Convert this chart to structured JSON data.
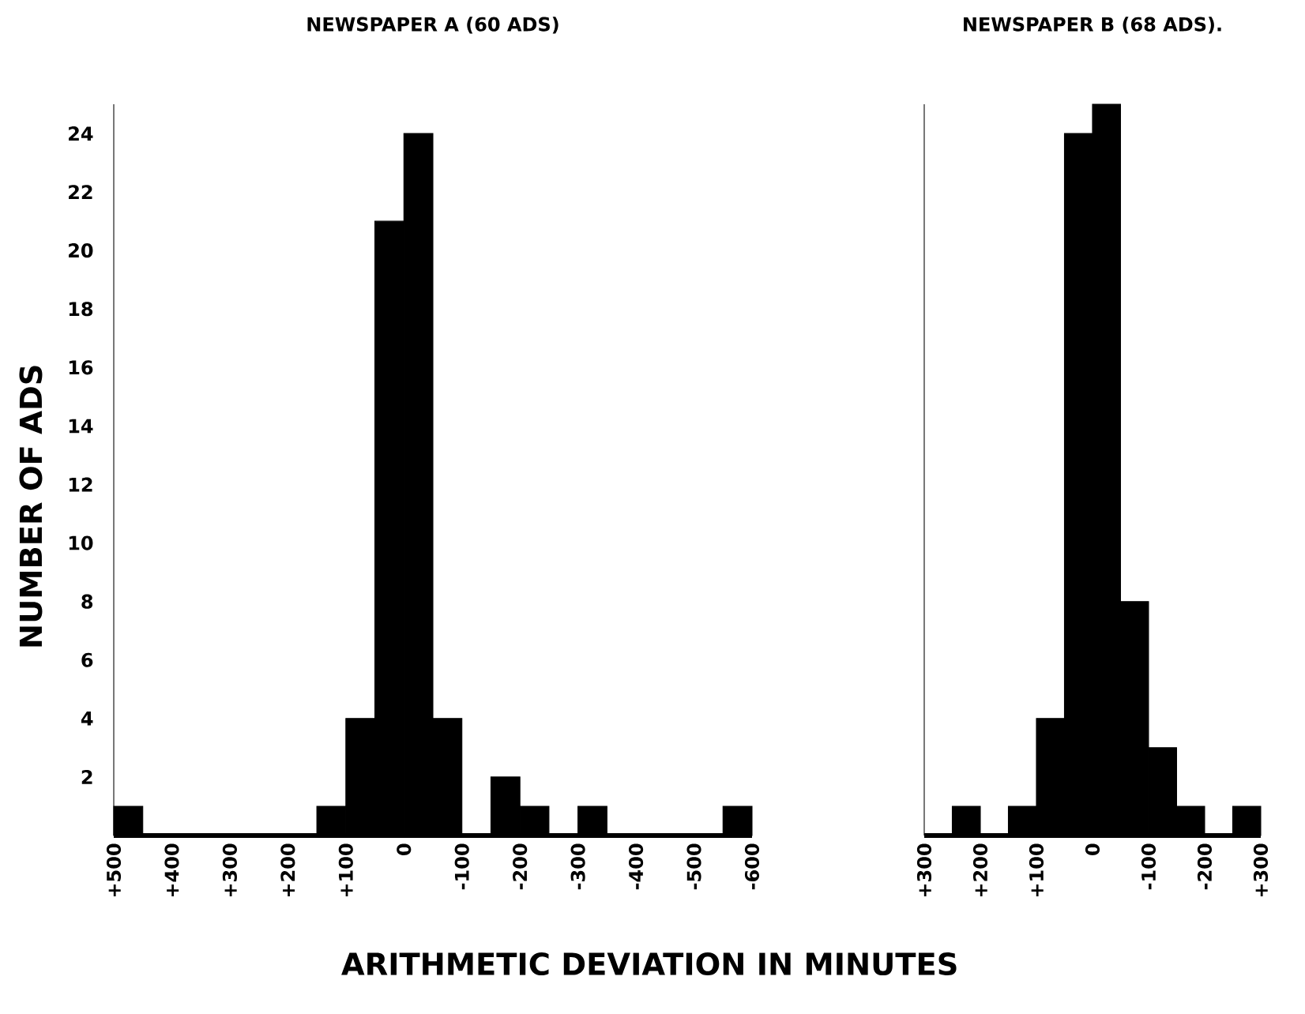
{
  "chart_data": [
    {
      "type": "histogram",
      "title": "NEWSPAPER A (60 ADS)",
      "xlabel": "ARITHMETIC DEVIATION IN MINUTES",
      "ylabel": "NUMBER OF ADS",
      "color": "#000000",
      "bins": [
        -600,
        -550,
        -500,
        -450,
        -400,
        -350,
        -300,
        -250,
        -200,
        -150,
        -100,
        -50,
        0,
        50,
        100,
        150,
        200,
        250,
        300,
        350,
        400,
        450,
        500
      ],
      "values": [
        1,
        0,
        0,
        0,
        0,
        1,
        0,
        1,
        2,
        0,
        4,
        24,
        21,
        4,
        1,
        0,
        0,
        0,
        0,
        0,
        0,
        1
      ],
      "xlim": [
        500,
        -600
      ],
      "xticks": [
        {
          "value": 500,
          "label": "+500"
        },
        {
          "value": 400,
          "label": "+400"
        },
        {
          "value": 300,
          "label": "+300"
        },
        {
          "value": 200,
          "label": "+200"
        },
        {
          "value": 100,
          "label": "+100"
        },
        {
          "value": 0,
          "label": "0"
        },
        {
          "value": -100,
          "label": "-100"
        },
        {
          "value": -200,
          "label": "-200"
        },
        {
          "value": -300,
          "label": "-300"
        },
        {
          "value": -400,
          "label": "-400"
        },
        {
          "value": -500,
          "label": "-500"
        },
        {
          "value": -600,
          "label": "-600"
        }
      ],
      "ylim": [
        0,
        25
      ],
      "yticks": [
        2,
        4,
        6,
        8,
        10,
        12,
        14,
        16,
        18,
        20,
        22,
        24
      ]
    },
    {
      "type": "histogram",
      "title": "NEWSPAPER B (68 ADS).",
      "color": "#000000",
      "bins": [
        -300,
        -250,
        -200,
        -150,
        -100,
        -50,
        0,
        50,
        100,
        150,
        200,
        250
      ],
      "values": [
        1,
        0,
        1,
        3,
        8,
        25,
        24,
        4,
        1,
        0,
        1
      ],
      "xlim": [
        300,
        -300
      ],
      "xticks": [
        {
          "value": 300,
          "label": "+300"
        },
        {
          "value": 200,
          "label": "+200"
        },
        {
          "value": 100,
          "label": "+100"
        },
        {
          "value": 0,
          "label": "0"
        },
        {
          "value": -100,
          "label": "-100"
        },
        {
          "value": -200,
          "label": "-200"
        },
        {
          "value": -300,
          "label": "+300"
        }
      ],
      "ylim": [
        0,
        25
      ],
      "tick_labels": "x"
    }
  ]
}
